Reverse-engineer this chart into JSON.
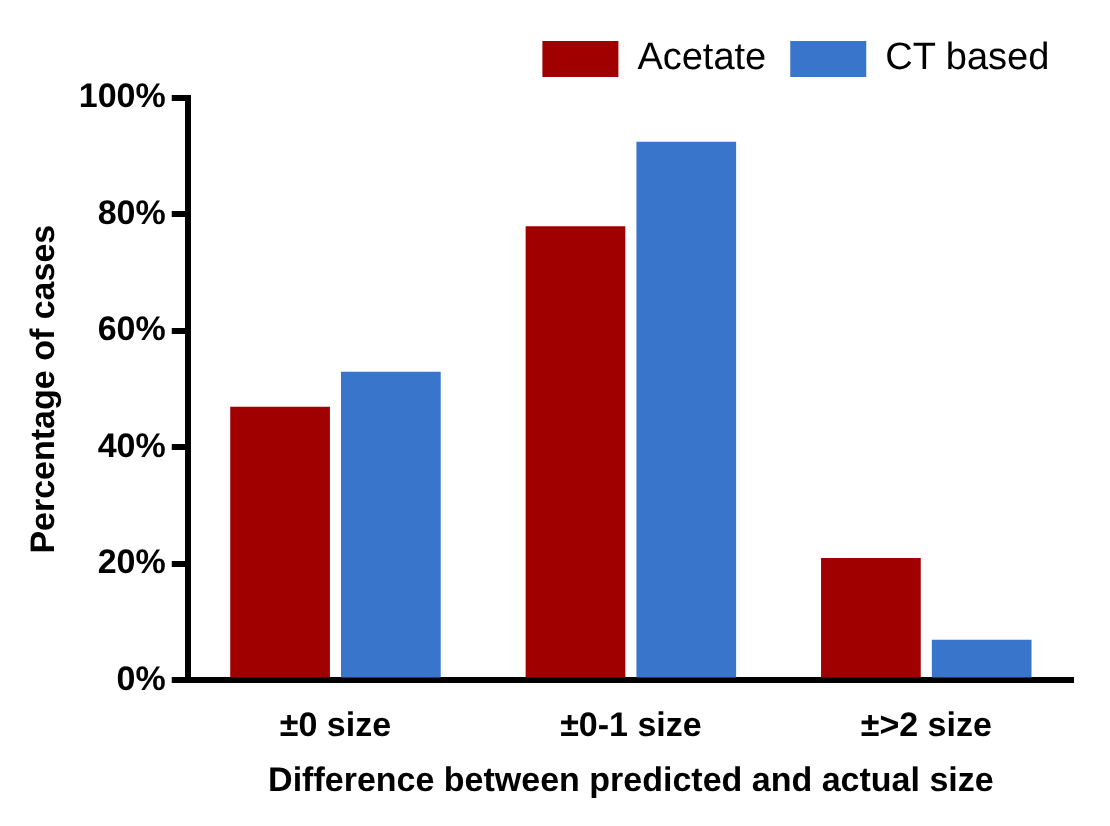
{
  "chart_data": {
    "type": "bar",
    "xlabel": "Difference between predicted and actual size",
    "ylabel": "Percentage of cases",
    "categories": [
      "±0 size",
      "±0-1 size",
      "±>2 size"
    ],
    "series": [
      {
        "name": "Acetate",
        "color": "#a00000",
        "values": [
          47,
          78,
          21
        ]
      },
      {
        "name": "CT based",
        "color": "#3a75cc",
        "values": [
          53,
          92.5,
          7
        ]
      }
    ],
    "ylim": [
      0,
      100
    ],
    "yticks": [
      {
        "value": 0,
        "label": "0%"
      },
      {
        "value": 20,
        "label": "20%"
      },
      {
        "value": 40,
        "label": "40%"
      },
      {
        "value": 60,
        "label": "60%"
      },
      {
        "value": 80,
        "label": "80%"
      },
      {
        "value": 100,
        "label": "100%"
      }
    ],
    "grid": false,
    "legend": "top right"
  }
}
